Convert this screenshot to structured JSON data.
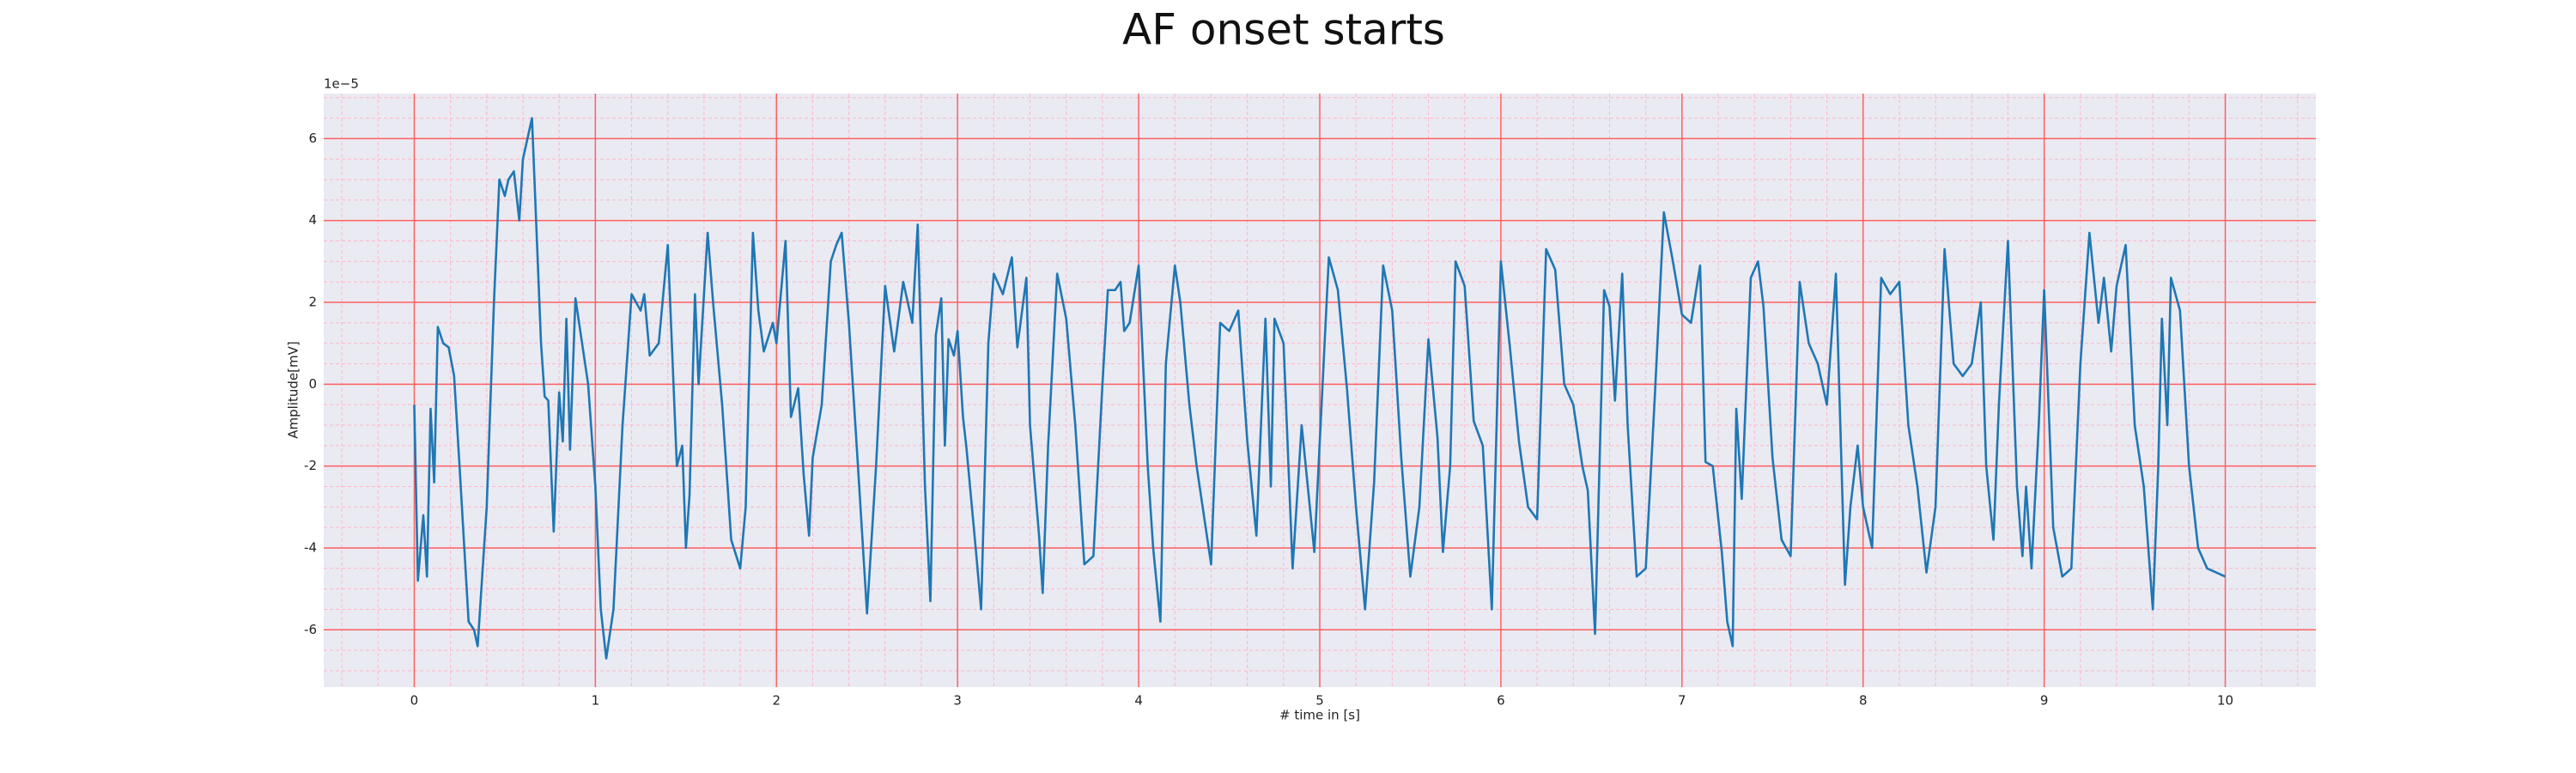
{
  "chart_data": {
    "type": "line",
    "title": "AF onset starts",
    "xlabel": "# time in [s]",
    "ylabel": "Amplitude[mV]",
    "y_offset_label": "1e−5",
    "color": "#1f77b4",
    "grid": true,
    "minor_grid": true,
    "xlim": [
      -0.5,
      10.5
    ],
    "ylim": [
      -7.4,
      7.1
    ],
    "xticks": [
      0,
      1,
      2,
      3,
      4,
      5,
      6,
      7,
      8,
      9,
      10
    ],
    "yticks": [
      -6,
      -4,
      -2,
      0,
      2,
      4,
      6
    ],
    "x": [
      0,
      0.02,
      0.05,
      0.07,
      0.09,
      0.11,
      0.13,
      0.16,
      0.19,
      0.22,
      0.25,
      0.3,
      0.33,
      0.35,
      0.4,
      0.44,
      0.47,
      0.5,
      0.52,
      0.55,
      0.58,
      0.6,
      0.65,
      0.7,
      0.72,
      0.74,
      0.77,
      0.8,
      0.82,
      0.84,
      0.86,
      0.89,
      0.92,
      0.96,
      1.0,
      1.03,
      1.06,
      1.1,
      1.15,
      1.2,
      1.25,
      1.27,
      1.3,
      1.35,
      1.4,
      1.45,
      1.48,
      1.5,
      1.52,
      1.55,
      1.57,
      1.62,
      1.65,
      1.7,
      1.75,
      1.8,
      1.83,
      1.87,
      1.9,
      1.93,
      1.98,
      2.0,
      2.05,
      2.08,
      2.12,
      2.15,
      2.18,
      2.2,
      2.25,
      2.3,
      2.33,
      2.36,
      2.4,
      2.45,
      2.5,
      2.55,
      2.6,
      2.65,
      2.7,
      2.75,
      2.78,
      2.82,
      2.85,
      2.88,
      2.91,
      2.93,
      2.95,
      2.98,
      3.0,
      3.03,
      3.05,
      3.1,
      3.13,
      3.17,
      3.2,
      3.25,
      3.3,
      3.33,
      3.38,
      3.4,
      3.45,
      3.47,
      3.5,
      3.55,
      3.6,
      3.65,
      3.7,
      3.75,
      3.8,
      3.83,
      3.87,
      3.9,
      3.92,
      3.95,
      4.0,
      4.05,
      4.08,
      4.12,
      4.15,
      4.2,
      4.23,
      4.28,
      4.32,
      4.37,
      4.4,
      4.45,
      4.5,
      4.55,
      4.6,
      4.65,
      4.7,
      4.73,
      4.75,
      4.8,
      4.85,
      4.9,
      4.97,
      5.05,
      5.1,
      5.15,
      5.2,
      5.25,
      5.3,
      5.35,
      5.4,
      5.45,
      5.5,
      5.55,
      5.6,
      5.65,
      5.68,
      5.72,
      5.75,
      5.8,
      5.85,
      5.9,
      5.95,
      6.0,
      6.05,
      6.1,
      6.15,
      6.2,
      6.25,
      6.3,
      6.35,
      6.4,
      6.45,
      6.48,
      6.52,
      6.57,
      6.6,
      6.63,
      6.67,
      6.7,
      6.75,
      6.8,
      6.85,
      6.9,
      6.95,
      7.0,
      7.05,
      7.1,
      7.13,
      7.17,
      7.22,
      7.25,
      7.28,
      7.3,
      7.33,
      7.38,
      7.42,
      7.45,
      7.5,
      7.55,
      7.6,
      7.65,
      7.7,
      7.75,
      7.8,
      7.85,
      7.9,
      7.93,
      7.97,
      8.0,
      8.05,
      8.1,
      8.15,
      8.2,
      8.25,
      8.3,
      8.35,
      8.4,
      8.45,
      8.5,
      8.55,
      8.6,
      8.65,
      8.68,
      8.72,
      8.75,
      8.8,
      8.85,
      8.88,
      8.9,
      8.93,
      8.97,
      9.0,
      9.05,
      9.1,
      9.15,
      9.2,
      9.25,
      9.3,
      9.33,
      9.37,
      9.4,
      9.45,
      9.5,
      9.55,
      9.6,
      9.63,
      9.65,
      9.68,
      9.7,
      9.75,
      9.8,
      9.85,
      9.9,
      10.0
    ],
    "values": [
      -0.5,
      -4.8,
      -3.2,
      -4.7,
      -0.6,
      -2.4,
      1.4,
      1.0,
      0.9,
      0.2,
      -2,
      -5.8,
      -6.0,
      -6.4,
      -3,
      2,
      5.0,
      4.6,
      5.0,
      5.2,
      4.0,
      5.5,
      6.5,
      1,
      -0.3,
      -0.4,
      -3.6,
      -0.2,
      -1.4,
      1.6,
      -1.6,
      2.1,
      1.2,
      0,
      -2.5,
      -5.5,
      -6.7,
      -5.5,
      -1,
      2.2,
      1.8,
      2.2,
      0.7,
      1.0,
      3.4,
      -2,
      -1.5,
      -4,
      -2.7,
      2.2,
      0,
      3.7,
      2,
      -0.5,
      -3.8,
      -4.5,
      -3,
      3.7,
      1.8,
      0.8,
      1.5,
      1.0,
      3.5,
      -0.8,
      -0.1,
      -2.2,
      -3.7,
      -1.8,
      -0.5,
      3,
      3.4,
      3.7,
      1.5,
      -2,
      -5.6,
      -2,
      2.4,
      0.8,
      2.5,
      1.5,
      3.9,
      -2.5,
      -5.3,
      1.2,
      2.1,
      -1.5,
      1.1,
      0.7,
      1.3,
      -0.8,
      -1.6,
      -4,
      -5.5,
      1,
      2.7,
      2.2,
      3.1,
      0.9,
      2.6,
      -1,
      -3.7,
      -5.1,
      -1.5,
      2.7,
      1.6,
      -1,
      -4.4,
      -4.2,
      0,
      2.3,
      2.3,
      2.5,
      1.3,
      1.5,
      2.9,
      -2,
      -4,
      -5.8,
      0.5,
      2.9,
      2,
      -0.5,
      -2,
      -3.5,
      -4.4,
      1.5,
      1.3,
      1.8,
      -1.4,
      -3.7,
      1.6,
      -2.5,
      1.6,
      1,
      -4.5,
      -1,
      -4.1,
      3.1,
      2.3,
      -0.1,
      -3,
      -5.5,
      -2.4,
      2.9,
      1.8,
      -1.8,
      -4.7,
      -3,
      1.1,
      -1.3,
      -4.1,
      -2,
      3,
      2.4,
      -0.9,
      -1.5,
      -5.5,
      3,
      0.9,
      -1.4,
      -3,
      -3.3,
      3.3,
      2.8,
      0,
      -0.5,
      -2,
      -2.6,
      -6.1,
      2.3,
      1.9,
      -0.4,
      2.7,
      -1,
      -4.7,
      -4.5,
      -0.3,
      4.2,
      3,
      1.7,
      1.5,
      2.9,
      -1.9,
      -2,
      -4.1,
      -5.8,
      -6.4,
      -0.6,
      -2.8,
      2.6,
      3,
      1.9,
      -1.8,
      -3.8,
      -4.2,
      2.5,
      1,
      0.5,
      -0.5,
      2.7,
      -4.9,
      -3,
      -1.5,
      -3,
      -4,
      2.6,
      2.2,
      2.5,
      -1,
      -2.5,
      -4.6,
      -3,
      3.3,
      0.5,
      0.2,
      0.5,
      2,
      -2,
      -3.8,
      -0.5,
      3.5,
      -2.5,
      -4.2,
      -2.5,
      -4.5,
      -1,
      2.3,
      -3.5,
      -4.7,
      -4.5,
      0.5,
      3.7,
      1.5,
      2.6,
      0.8,
      2.4,
      3.4,
      -1,
      -2.5,
      -5.5,
      -2,
      1.6,
      -1,
      2.6,
      1.8,
      -2,
      -4,
      -4.5,
      -4.7
    ]
  }
}
